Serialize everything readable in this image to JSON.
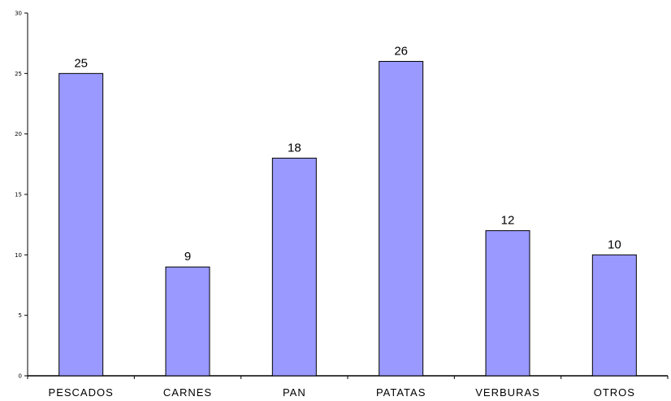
{
  "chart_data": {
    "type": "bar",
    "categories": [
      "PESCADOS",
      "CARNES",
      "PAN",
      "PATATAS",
      "VERBURAS",
      "OTROS"
    ],
    "values": [
      25,
      9,
      18,
      26,
      12,
      10
    ],
    "data_labels": [
      "25",
      "9",
      "18",
      "26",
      "12",
      "10"
    ],
    "yticks": [
      0,
      5,
      10,
      15,
      20,
      25,
      30
    ],
    "ytick_labels": [
      "0",
      "5",
      "10",
      "15",
      "20",
      "25",
      "30"
    ],
    "ylim": [
      0,
      30
    ],
    "title": "",
    "xlabel": "",
    "ylabel": "",
    "grid": false,
    "legend": "none",
    "colors": {
      "bar_fill": "#9999ff",
      "bar_stroke": "#000000",
      "axis": "#000000"
    }
  }
}
